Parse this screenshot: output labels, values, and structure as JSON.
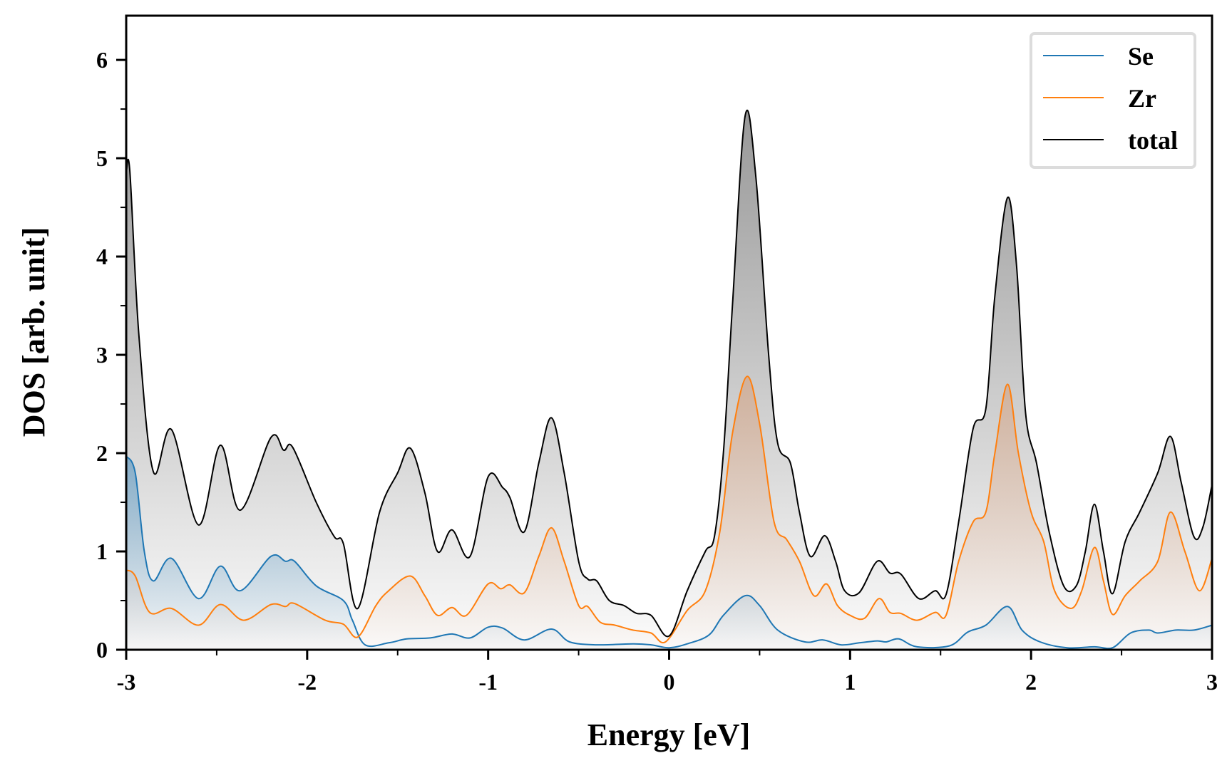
{
  "chart_data": {
    "type": "line",
    "title": "",
    "xlabel": "Energy [eV]",
    "ylabel": "DOS [arb. unit]",
    "xlim": [
      -3,
      3
    ],
    "ylim": [
      0,
      6.45
    ],
    "xticks": [
      -3,
      -2,
      -1,
      0,
      1,
      2,
      3
    ],
    "yticks": [
      0,
      1,
      2,
      3,
      4,
      5,
      6
    ],
    "grid": false,
    "legend_position": "top-right",
    "series": [
      {
        "name": "Se",
        "color": "#1f77b4",
        "fill": true,
        "x": [
          -3,
          -2.95,
          -2.9,
          -2.85,
          -2.75,
          -2.6,
          -2.48,
          -2.37,
          -2.2,
          -2.12,
          -2.07,
          -1.95,
          -1.8,
          -1.75,
          -1.68,
          -1.55,
          -1.45,
          -1.32,
          -1.2,
          -1.1,
          -1.0,
          -0.92,
          -0.8,
          -0.65,
          -0.55,
          -0.4,
          -0.2,
          -0.1,
          0,
          0.1,
          0.22,
          0.3,
          0.42,
          0.5,
          0.6,
          0.75,
          0.85,
          0.95,
          1.05,
          1.15,
          1.2,
          1.27,
          1.37,
          1.55,
          1.65,
          1.75,
          1.87,
          1.95,
          2.05,
          2.2,
          2.35,
          2.45,
          2.55,
          2.65,
          2.7,
          2.8,
          2.9,
          3.0
        ],
        "y": [
          1.97,
          1.8,
          1.0,
          0.7,
          0.93,
          0.52,
          0.85,
          0.6,
          0.95,
          0.9,
          0.9,
          0.65,
          0.5,
          0.3,
          0.05,
          0.07,
          0.11,
          0.12,
          0.16,
          0.12,
          0.23,
          0.22,
          0.1,
          0.21,
          0.08,
          0.05,
          0.06,
          0.05,
          0.02,
          0.06,
          0.15,
          0.35,
          0.55,
          0.45,
          0.2,
          0.08,
          0.1,
          0.05,
          0.07,
          0.09,
          0.08,
          0.11,
          0.03,
          0.04,
          0.18,
          0.25,
          0.44,
          0.2,
          0.08,
          0.02,
          0.03,
          0.02,
          0.17,
          0.2,
          0.17,
          0.2,
          0.2,
          0.25
        ]
      },
      {
        "name": "Zr",
        "color": "#ff7f0e",
        "fill": true,
        "x": [
          -3,
          -2.95,
          -2.87,
          -2.75,
          -2.6,
          -2.48,
          -2.35,
          -2.2,
          -2.12,
          -2.07,
          -1.9,
          -1.8,
          -1.72,
          -1.62,
          -1.55,
          -1.43,
          -1.35,
          -1.28,
          -1.2,
          -1.12,
          -1.0,
          -0.93,
          -0.88,
          -0.8,
          -0.72,
          -0.65,
          -0.58,
          -0.5,
          -0.45,
          -0.38,
          -0.3,
          -0.2,
          -0.1,
          -0.02,
          0.1,
          0.2,
          0.28,
          0.35,
          0.43,
          0.5,
          0.58,
          0.65,
          0.72,
          0.8,
          0.87,
          0.93,
          1.0,
          1.08,
          1.16,
          1.22,
          1.28,
          1.37,
          1.47,
          1.53,
          1.6,
          1.68,
          1.75,
          1.8,
          1.87,
          1.93,
          2.0,
          2.07,
          2.13,
          2.22,
          2.28,
          2.35,
          2.4,
          2.45,
          2.52,
          2.6,
          2.7,
          2.77,
          2.85,
          2.93,
          3.0
        ],
        "y": [
          0.81,
          0.75,
          0.38,
          0.42,
          0.25,
          0.46,
          0.3,
          0.46,
          0.44,
          0.47,
          0.3,
          0.26,
          0.13,
          0.45,
          0.6,
          0.75,
          0.55,
          0.35,
          0.43,
          0.35,
          0.67,
          0.62,
          0.66,
          0.58,
          0.95,
          1.24,
          0.9,
          0.45,
          0.44,
          0.28,
          0.25,
          0.2,
          0.17,
          0.08,
          0.4,
          0.6,
          1.2,
          2.2,
          2.78,
          2.3,
          1.3,
          1.12,
          0.9,
          0.55,
          0.67,
          0.45,
          0.35,
          0.32,
          0.52,
          0.38,
          0.37,
          0.3,
          0.38,
          0.35,
          0.9,
          1.3,
          1.4,
          2.0,
          2.7,
          2.0,
          1.4,
          1.1,
          0.6,
          0.42,
          0.6,
          1.04,
          0.7,
          0.36,
          0.55,
          0.7,
          0.9,
          1.4,
          1.0,
          0.6,
          0.93
        ]
      },
      {
        "name": "total",
        "color": "#000000",
        "fill": true,
        "x": [
          -3,
          -2.98,
          -2.93,
          -2.85,
          -2.75,
          -2.6,
          -2.48,
          -2.37,
          -2.2,
          -2.13,
          -2.08,
          -1.95,
          -1.85,
          -1.8,
          -1.72,
          -1.6,
          -1.5,
          -1.43,
          -1.35,
          -1.28,
          -1.2,
          -1.1,
          -1.0,
          -0.92,
          -0.88,
          -0.8,
          -0.72,
          -0.65,
          -0.58,
          -0.5,
          -0.45,
          -0.4,
          -0.33,
          -0.25,
          -0.18,
          -0.1,
          0,
          0.1,
          0.2,
          0.25,
          0.3,
          0.35,
          0.42,
          0.48,
          0.55,
          0.6,
          0.67,
          0.72,
          0.78,
          0.86,
          0.92,
          0.97,
          1.05,
          1.15,
          1.22,
          1.28,
          1.38,
          1.47,
          1.53,
          1.6,
          1.68,
          1.75,
          1.8,
          1.87,
          1.92,
          1.97,
          2.03,
          2.1,
          2.18,
          2.25,
          2.3,
          2.35,
          2.4,
          2.45,
          2.52,
          2.6,
          2.7,
          2.77,
          2.83,
          2.9,
          2.95,
          3.0
        ],
        "y": [
          4.85,
          4.87,
          3.2,
          1.81,
          2.24,
          1.27,
          2.08,
          1.42,
          2.16,
          2.03,
          2.06,
          1.5,
          1.15,
          1.08,
          0.42,
          1.4,
          1.8,
          2.05,
          1.6,
          1.0,
          1.22,
          0.95,
          1.76,
          1.65,
          1.55,
          1.2,
          1.9,
          2.36,
          1.8,
          0.9,
          0.72,
          0.7,
          0.5,
          0.45,
          0.37,
          0.35,
          0.14,
          0.6,
          1.0,
          1.15,
          2.0,
          3.5,
          5.43,
          4.8,
          3.0,
          2.1,
          1.9,
          1.4,
          0.95,
          1.16,
          0.9,
          0.6,
          0.58,
          0.9,
          0.78,
          0.77,
          0.52,
          0.6,
          0.56,
          1.3,
          2.25,
          2.45,
          3.6,
          4.6,
          3.9,
          2.4,
          1.9,
          1.2,
          0.65,
          0.65,
          1.0,
          1.48,
          1.0,
          0.57,
          1.1,
          1.4,
          1.8,
          2.17,
          1.7,
          1.15,
          1.25,
          1.68
        ]
      }
    ]
  }
}
